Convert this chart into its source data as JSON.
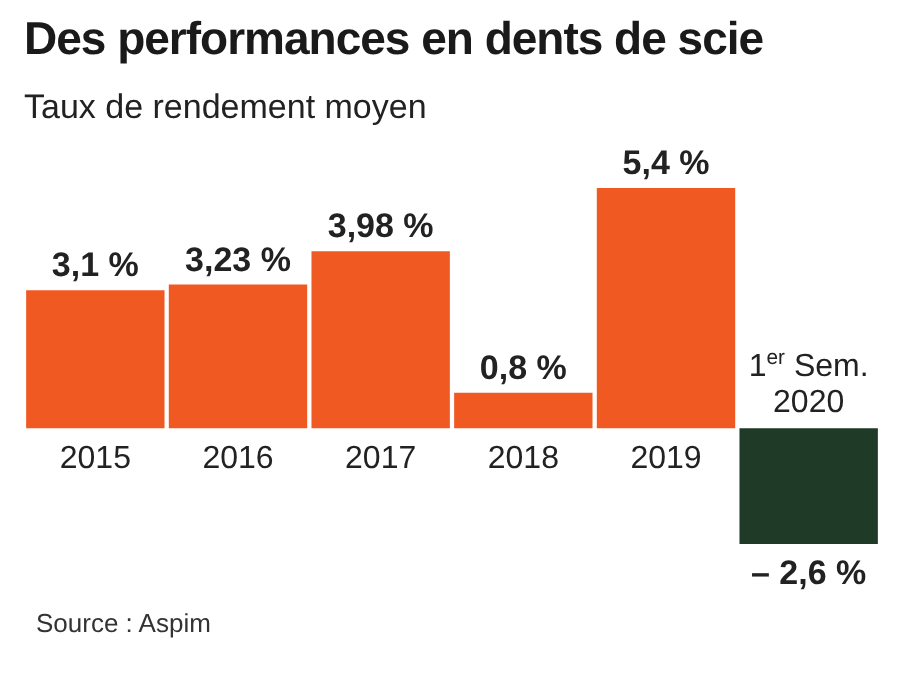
{
  "chart_data": {
    "type": "bar",
    "title": "Des performances en dents de scie",
    "subtitle": "Taux de rendement moyen",
    "categories": [
      "2015",
      "2016",
      "2017",
      "2018",
      "2019",
      "1$^{er}$ Sem. 2020"
    ],
    "values": [
      3.1,
      3.23,
      3.98,
      0.8,
      5.4,
      -2.6
    ],
    "value_labels": [
      "3,1 %",
      "3,23 %",
      "3,98 %",
      "0,8 %",
      "5,4 %",
      "– 2,6 %"
    ],
    "colors": [
      "#f05a22",
      "#f05a22",
      "#f05a22",
      "#f05a22",
      "#f05a22",
      "#1f3a27"
    ],
    "annotations": [
      "Source : Aspim"
    ]
  }
}
